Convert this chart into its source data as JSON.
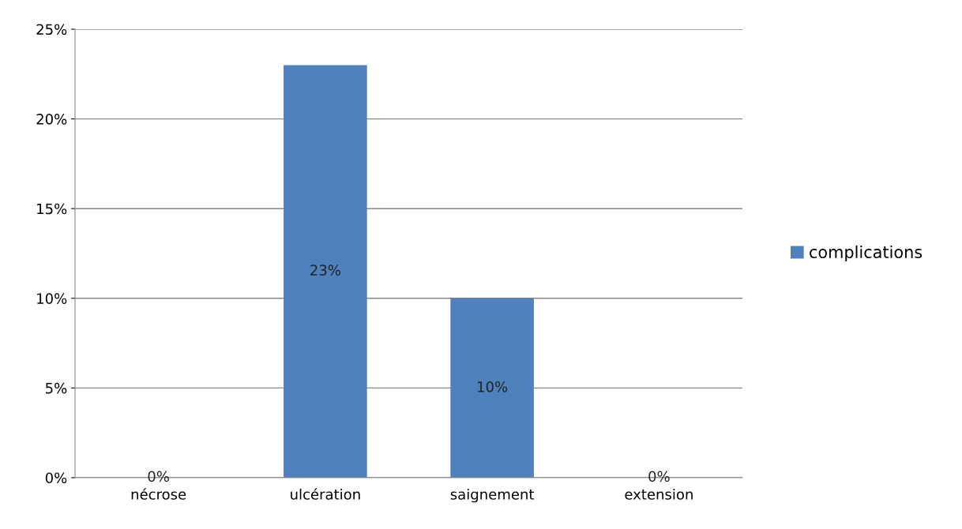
{
  "chart_data": {
    "type": "bar",
    "categories": [
      "nécrose",
      "ulcération",
      "saignement",
      "extension"
    ],
    "series": [
      {
        "name": "complications",
        "color": "#4f81bd",
        "values": [
          0,
          23,
          10,
          0
        ]
      }
    ],
    "ylim": [
      0,
      25
    ],
    "yticks": [
      {
        "value": 0,
        "label": "0%"
      },
      {
        "value": 5,
        "label": "5%"
      },
      {
        "value": 10,
        "label": "10%"
      },
      {
        "value": 15,
        "label": "15%"
      },
      {
        "value": 20,
        "label": "20%"
      },
      {
        "value": 25,
        "label": "25%"
      }
    ],
    "value_labels": [
      "0%",
      "23%",
      "10%",
      "0%"
    ],
    "grid": "y",
    "legend": "right"
  }
}
